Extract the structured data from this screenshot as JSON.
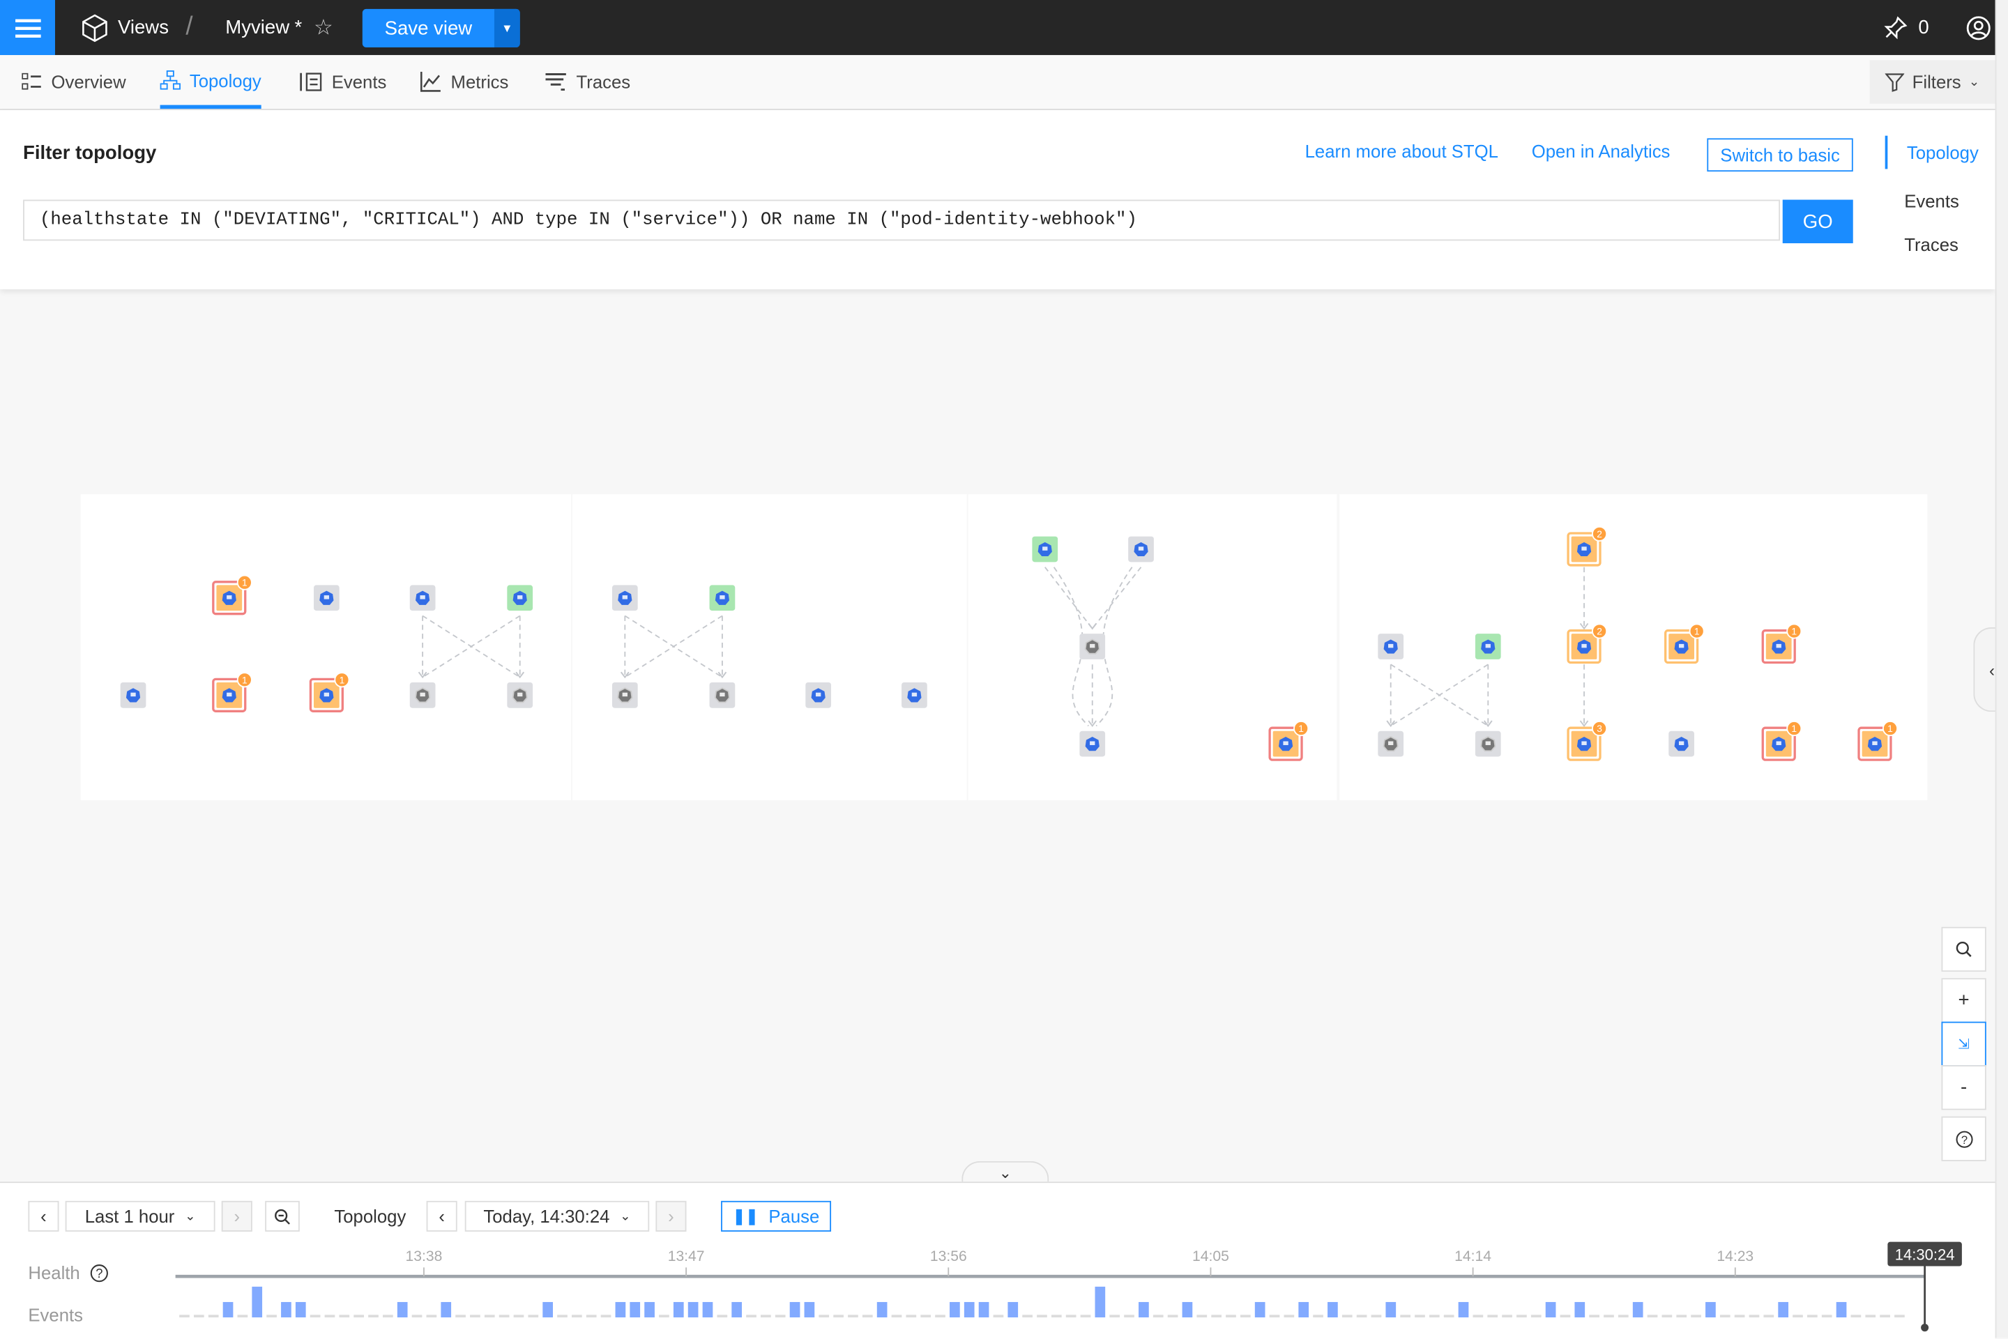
{
  "header": {
    "menu_icon": "hamburger-icon",
    "breadcrumb_root": "Views",
    "separator": "/",
    "view_name": "Myview",
    "modified_marker": "*",
    "save_label": "Save view",
    "pin_count": "0"
  },
  "tabs": [
    {
      "label": "Overview",
      "icon": "overview-icon"
    },
    {
      "label": "Topology",
      "icon": "topology-icon",
      "active": true
    },
    {
      "label": "Events",
      "icon": "events-icon"
    },
    {
      "label": "Metrics",
      "icon": "metrics-icon"
    },
    {
      "label": "Traces",
      "icon": "traces-icon"
    }
  ],
  "filters_label": "Filters",
  "filter": {
    "title": "Filter topology",
    "learn_stql": "Learn more about STQL",
    "open_analytics": "Open in Analytics",
    "switch_basic": "Switch to basic",
    "query": "(healthstate IN (\"DEVIATING\", \"CRITICAL\") AND type IN (\"service\")) OR name IN (\"pod-identity-webhook\")",
    "go_label": "GO",
    "side_nav": [
      "Topology",
      "Events",
      "Traces"
    ]
  },
  "colors": {
    "accent": "#1a8cff",
    "critical_border": "#f08080",
    "deviating_fill": "#ffc06e",
    "badge": "#ffa03c",
    "clear": "#a8e6b0",
    "unknown": "#dcdde1",
    "event_bar": "#82aaff"
  },
  "topology": {
    "nodes": [
      {
        "health": "critical",
        "icon": "service-icon",
        "badge": "1"
      },
      {
        "health": "unknown",
        "icon": "configmap-icon"
      },
      {
        "health": "unknown",
        "icon": "deployment-icon"
      },
      {
        "health": "clear",
        "icon": "service-icon"
      },
      {
        "health": "unknown",
        "icon": "pod-icon"
      },
      {
        "health": "critical",
        "icon": "service-icon",
        "badge": "1"
      },
      {
        "health": "critical",
        "icon": "service-icon",
        "badge": "1"
      },
      {
        "health": "unknown",
        "icon": "docker-icon"
      },
      {
        "health": "unknown",
        "icon": "docker-icon"
      },
      {
        "health": "unknown",
        "icon": "deployment-icon"
      },
      {
        "health": "clear",
        "icon": "service-icon"
      },
      {
        "health": "unknown",
        "icon": "docker-icon"
      },
      {
        "health": "unknown",
        "icon": "docker-icon"
      },
      {
        "health": "unknown",
        "icon": "configmap-icon"
      },
      {
        "health": "unknown",
        "icon": "pod-icon"
      },
      {
        "health": "clear",
        "icon": "service-icon"
      },
      {
        "health": "unknown",
        "icon": "deployment-icon"
      },
      {
        "health": "unknown",
        "icon": "docker-icon"
      },
      {
        "health": "unknown",
        "icon": "pod-icon"
      },
      {
        "health": "critical",
        "icon": "service-icon",
        "badge": "1"
      },
      {
        "health": "deviating",
        "icon": "service-icon",
        "badge": "2"
      },
      {
        "health": "unknown",
        "icon": "deployment-icon"
      },
      {
        "health": "clear",
        "icon": "service-icon"
      },
      {
        "health": "deviating",
        "icon": "service-icon",
        "badge": "2"
      },
      {
        "health": "deviating",
        "icon": "service-icon",
        "badge": "1"
      },
      {
        "health": "critical",
        "icon": "service-icon",
        "badge": "1"
      },
      {
        "health": "unknown",
        "icon": "docker-icon"
      },
      {
        "health": "unknown",
        "icon": "docker-icon"
      },
      {
        "health": "deviating",
        "icon": "service-icon",
        "badge": "3"
      },
      {
        "health": "unknown",
        "icon": "configmap-icon"
      },
      {
        "health": "critical",
        "icon": "service-icon",
        "badge": "1"
      },
      {
        "health": "critical",
        "icon": "service-icon",
        "badge": "1"
      }
    ]
  },
  "timeline": {
    "range_label": "Last 1 hour",
    "mode_label": "Topology",
    "time_label": "Today, 14:30:24",
    "pause_label": "Pause",
    "health_label": "Health",
    "events_label": "Events",
    "ticks": [
      "13:38",
      "13:47",
      "13:56",
      "14:05",
      "14:14",
      "14:23"
    ],
    "current_time": "14:30:24",
    "events": [
      0,
      0,
      0,
      1,
      0,
      2,
      0,
      1,
      1,
      0,
      0,
      0,
      0,
      0,
      0,
      1,
      0,
      0,
      1,
      0,
      0,
      0,
      0,
      0,
      0,
      1,
      0,
      0,
      0,
      0,
      1,
      1,
      1,
      0,
      1,
      1,
      1,
      0,
      1,
      0,
      0,
      0,
      1,
      1,
      0,
      0,
      0,
      0,
      1,
      0,
      0,
      0,
      0,
      1,
      1,
      1,
      0,
      1,
      0,
      0,
      0,
      0,
      0,
      2,
      0,
      0,
      1,
      0,
      0,
      1,
      0,
      0,
      0,
      0,
      1,
      0,
      0,
      1,
      0,
      1,
      0,
      0,
      0,
      1,
      0,
      0,
      0,
      0,
      1,
      0,
      0,
      0,
      0,
      0,
      1,
      0,
      1,
      0,
      0,
      0,
      1,
      0,
      0,
      0,
      0,
      1,
      0,
      0,
      0,
      0,
      1,
      0,
      0,
      0,
      1,
      0,
      0,
      0,
      0
    ]
  }
}
